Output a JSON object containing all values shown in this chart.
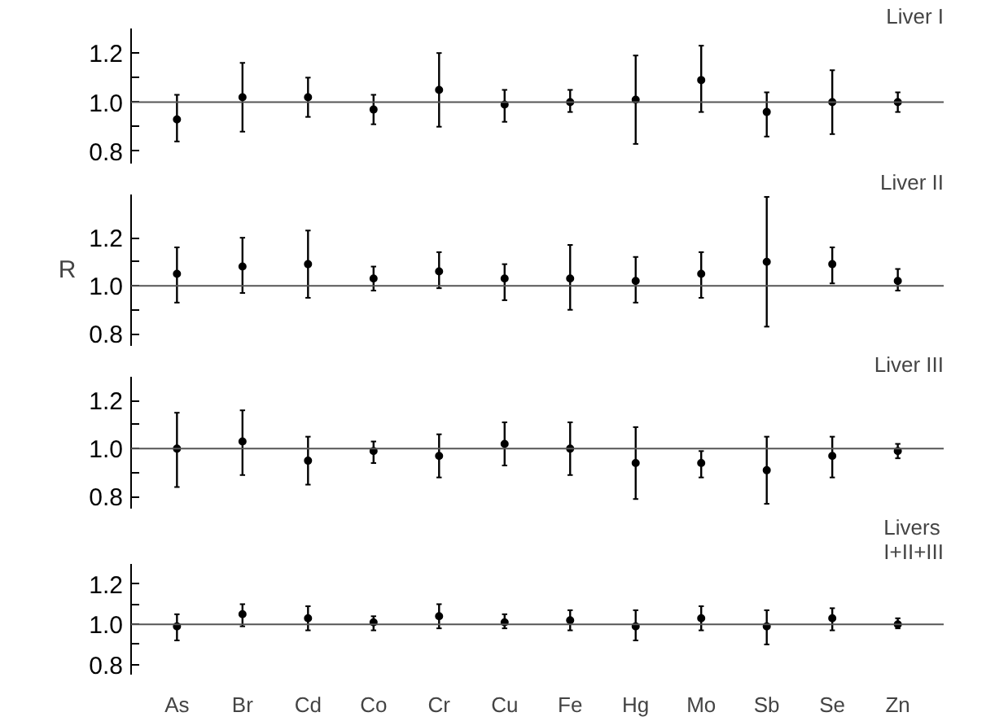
{
  "chart_data": [
    {
      "type": "scatter",
      "title": "Liver I",
      "categories": [
        null,
        null,
        null,
        null,
        null,
        null,
        null,
        null,
        null,
        null,
        null,
        null
      ],
      "color": "#000000",
      "marker": "circle",
      "grid": false,
      "ylim": [
        0.75,
        1.3
      ],
      "yticks": [
        {
          "value": 0.8,
          "label": "0.8"
        },
        {
          "value": 0.9,
          "label": null
        },
        {
          "value": 1,
          "label": "1.0"
        },
        {
          "value": 1.1,
          "label": null
        },
        {
          "value": 1.2,
          "label": "1.2"
        }
      ],
      "values": [
        0.93,
        1.02,
        1.02,
        0.97,
        1.05,
        0.99,
        1.0,
        1.01,
        1.09,
        0.96,
        1.0,
        1.0
      ],
      "errors": [
        [
          0.84,
          1.03
        ],
        [
          0.88,
          1.16
        ],
        [
          0.94,
          1.1
        ],
        [
          0.91,
          1.03
        ],
        [
          0.9,
          1.2
        ],
        [
          0.92,
          1.05
        ],
        [
          0.96,
          1.05
        ],
        [
          0.83,
          1.19
        ],
        [
          0.96,
          1.23
        ],
        [
          0.86,
          1.04
        ],
        [
          0.87,
          1.13
        ],
        [
          0.96,
          1.04
        ]
      ],
      "ref_lines": [
        {
          "axis": "y",
          "value": 1,
          "label": null
        }
      ]
    },
    {
      "type": "scatter",
      "title": "Liver II",
      "ylabel": "R",
      "categories": [
        null,
        null,
        null,
        null,
        null,
        null,
        null,
        null,
        null,
        null,
        null,
        null
      ],
      "color": "#000000",
      "marker": "circle",
      "grid": false,
      "ylim": [
        0.75,
        1.38
      ],
      "yticks": [
        {
          "value": 0.8,
          "label": "0.8"
        },
        {
          "value": 0.9,
          "label": null
        },
        {
          "value": 1,
          "label": "1.0"
        },
        {
          "value": 1.1,
          "label": null
        },
        {
          "value": 1.2,
          "label": "1.2"
        }
      ],
      "values": [
        1.05,
        1.08,
        1.09,
        1.03,
        1.06,
        1.03,
        1.03,
        1.02,
        1.05,
        1.1,
        1.09,
        1.02
      ],
      "errors": [
        [
          0.93,
          1.16
        ],
        [
          0.97,
          1.2
        ],
        [
          0.95,
          1.23
        ],
        [
          0.98,
          1.08
        ],
        [
          0.99,
          1.14
        ],
        [
          0.94,
          1.09
        ],
        [
          0.9,
          1.17
        ],
        [
          0.93,
          1.12
        ],
        [
          0.95,
          1.14
        ],
        [
          0.83,
          1.37
        ],
        [
          1.01,
          1.16
        ],
        [
          0.98,
          1.07
        ]
      ],
      "ref_lines": [
        {
          "axis": "y",
          "value": 1,
          "label": null
        }
      ]
    },
    {
      "type": "scatter",
      "title": "Liver III",
      "categories": [
        null,
        null,
        null,
        null,
        null,
        null,
        null,
        null,
        null,
        null,
        null,
        null
      ],
      "color": "#000000",
      "marker": "circle",
      "grid": false,
      "ylim": [
        0.75,
        1.3
      ],
      "yticks": [
        {
          "value": 0.8,
          "label": "0.8"
        },
        {
          "value": 0.9,
          "label": null
        },
        {
          "value": 1,
          "label": "1.0"
        },
        {
          "value": 1.1,
          "label": null
        },
        {
          "value": 1.2,
          "label": "1.2"
        }
      ],
      "values": [
        1.0,
        1.03,
        0.95,
        0.99,
        0.97,
        1.02,
        1.0,
        0.94,
        0.94,
        0.91,
        0.97,
        0.99
      ],
      "errors": [
        [
          0.84,
          1.15
        ],
        [
          0.89,
          1.16
        ],
        [
          0.85,
          1.05
        ],
        [
          0.94,
          1.03
        ],
        [
          0.88,
          1.06
        ],
        [
          0.93,
          1.11
        ],
        [
          0.89,
          1.11
        ],
        [
          0.79,
          1.09
        ],
        [
          0.88,
          0.99
        ],
        [
          0.77,
          1.05
        ],
        [
          0.88,
          1.05
        ],
        [
          0.96,
          1.02
        ]
      ],
      "ref_lines": [
        {
          "axis": "y",
          "value": 1,
          "label": null
        }
      ]
    },
    {
      "type": "scatter",
      "title": "Livers\nI+II+III",
      "categories": [
        "As",
        "Br",
        "Cd",
        "Co",
        "Cr",
        "Cu",
        "Fe",
        "Hg",
        "Mo",
        "Sb",
        "Se",
        "Zn"
      ],
      "color": "#000000",
      "marker": "circle",
      "grid": false,
      "ylim": [
        0.75,
        1.3
      ],
      "yticks": [
        {
          "value": 0.8,
          "label": "0.8"
        },
        {
          "value": 0.9,
          "label": null
        },
        {
          "value": 1,
          "label": "1.0"
        },
        {
          "value": 1.1,
          "label": null
        },
        {
          "value": 1.2,
          "label": "1.2"
        }
      ],
      "values": [
        0.99,
        1.05,
        1.03,
        1.01,
        1.04,
        1.01,
        1.02,
        0.99,
        1.03,
        0.99,
        1.03,
        1.0
      ],
      "errors": [
        [
          0.92,
          1.05
        ],
        [
          0.99,
          1.1
        ],
        [
          0.97,
          1.09
        ],
        [
          0.97,
          1.04
        ],
        [
          0.98,
          1.1
        ],
        [
          0.98,
          1.05
        ],
        [
          0.97,
          1.07
        ],
        [
          0.92,
          1.07
        ],
        [
          0.97,
          1.09
        ],
        [
          0.9,
          1.07
        ],
        [
          0.97,
          1.08
        ],
        [
          0.98,
          1.03
        ]
      ],
      "ref_lines": [
        {
          "axis": "y",
          "value": 1,
          "label": null
        }
      ]
    }
  ]
}
